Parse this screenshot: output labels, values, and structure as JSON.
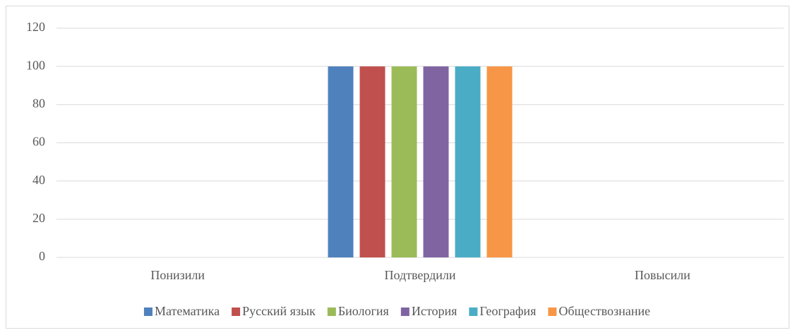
{
  "chart_data": {
    "type": "bar",
    "categories": [
      "Понизили",
      "Подтвердили",
      "Повысили"
    ],
    "series": [
      {
        "name": "Математика",
        "color": "#4f81bd",
        "values": [
          0,
          100,
          0
        ]
      },
      {
        "name": "Русский язык",
        "color": "#c0504d",
        "values": [
          0,
          100,
          0
        ]
      },
      {
        "name": "Биология",
        "color": "#9bbb59",
        "values": [
          0,
          100,
          0
        ]
      },
      {
        "name": "История",
        "color": "#8064a2",
        "values": [
          0,
          100,
          0
        ]
      },
      {
        "name": "География",
        "color": "#4bacc6",
        "values": [
          0,
          100,
          0
        ]
      },
      {
        "name": "Обществознание",
        "color": "#f79646",
        "values": [
          0,
          100,
          0
        ]
      }
    ],
    "ylim": [
      0,
      120
    ],
    "yticks": [
      0,
      20,
      40,
      60,
      80,
      100,
      120
    ],
    "grid": true,
    "legend": "bottom"
  }
}
